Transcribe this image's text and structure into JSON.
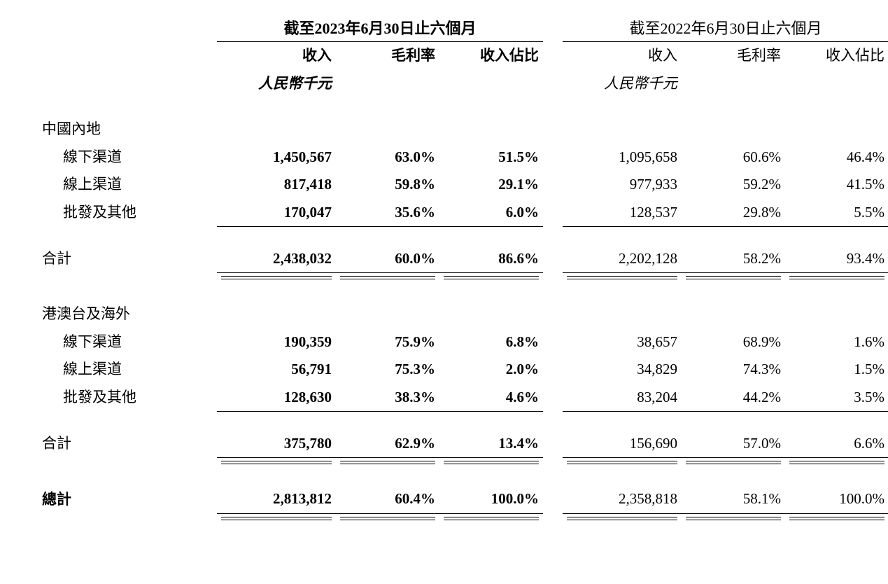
{
  "periods": {
    "p2023": "截至2023年6月30日止六個月",
    "p2022": "截至2022年6月30日止六個月"
  },
  "headers": {
    "revenue": "收入",
    "gross_margin": "毛利率",
    "revenue_pct": "收入佔比",
    "unit": "人民幣千元"
  },
  "sections": {
    "mainland": {
      "title": "中國內地",
      "rows": {
        "offline": {
          "label": "線下渠道",
          "p2023": {
            "rev": "1,450,567",
            "gm": "63.0%",
            "pct": "51.5%"
          },
          "p2022": {
            "rev": "1,095,658",
            "gm": "60.6%",
            "pct": "46.4%"
          }
        },
        "online": {
          "label": "線上渠道",
          "p2023": {
            "rev": "817,418",
            "gm": "59.8%",
            "pct": "29.1%"
          },
          "p2022": {
            "rev": "977,933",
            "gm": "59.2%",
            "pct": "41.5%"
          }
        },
        "wholesale": {
          "label": "批發及其他",
          "p2023": {
            "rev": "170,047",
            "gm": "35.6%",
            "pct": "6.0%"
          },
          "p2022": {
            "rev": "128,537",
            "gm": "29.8%",
            "pct": "5.5%"
          }
        }
      },
      "subtotal": {
        "label": "合計",
        "p2023": {
          "rev": "2,438,032",
          "gm": "60.0%",
          "pct": "86.6%"
        },
        "p2022": {
          "rev": "2,202,128",
          "gm": "58.2%",
          "pct": "93.4%"
        }
      }
    },
    "overseas": {
      "title": "港澳台及海外",
      "rows": {
        "offline": {
          "label": "線下渠道",
          "p2023": {
            "rev": "190,359",
            "gm": "75.9%",
            "pct": "6.8%"
          },
          "p2022": {
            "rev": "38,657",
            "gm": "68.9%",
            "pct": "1.6%"
          }
        },
        "online": {
          "label": "線上渠道",
          "p2023": {
            "rev": "56,791",
            "gm": "75.3%",
            "pct": "2.0%"
          },
          "p2022": {
            "rev": "34,829",
            "gm": "74.3%",
            "pct": "1.5%"
          }
        },
        "wholesale": {
          "label": "批發及其他",
          "p2023": {
            "rev": "128,630",
            "gm": "38.3%",
            "pct": "4.6%"
          },
          "p2022": {
            "rev": "83,204",
            "gm": "44.2%",
            "pct": "3.5%"
          }
        }
      },
      "subtotal": {
        "label": "合計",
        "p2023": {
          "rev": "375,780",
          "gm": "62.9%",
          "pct": "13.4%"
        },
        "p2022": {
          "rev": "156,690",
          "gm": "57.0%",
          "pct": "6.6%"
        }
      }
    }
  },
  "total": {
    "label": "總計",
    "p2023": {
      "rev": "2,813,812",
      "gm": "60.4%",
      "pct": "100.0%"
    },
    "p2022": {
      "rev": "2,358,818",
      "gm": "58.1%",
      "pct": "100.0%"
    }
  },
  "style": {
    "text_color": "#000000",
    "background": "#ffffff",
    "font_size_body": 21,
    "font_size_header": 22,
    "border_color": "#000000"
  }
}
